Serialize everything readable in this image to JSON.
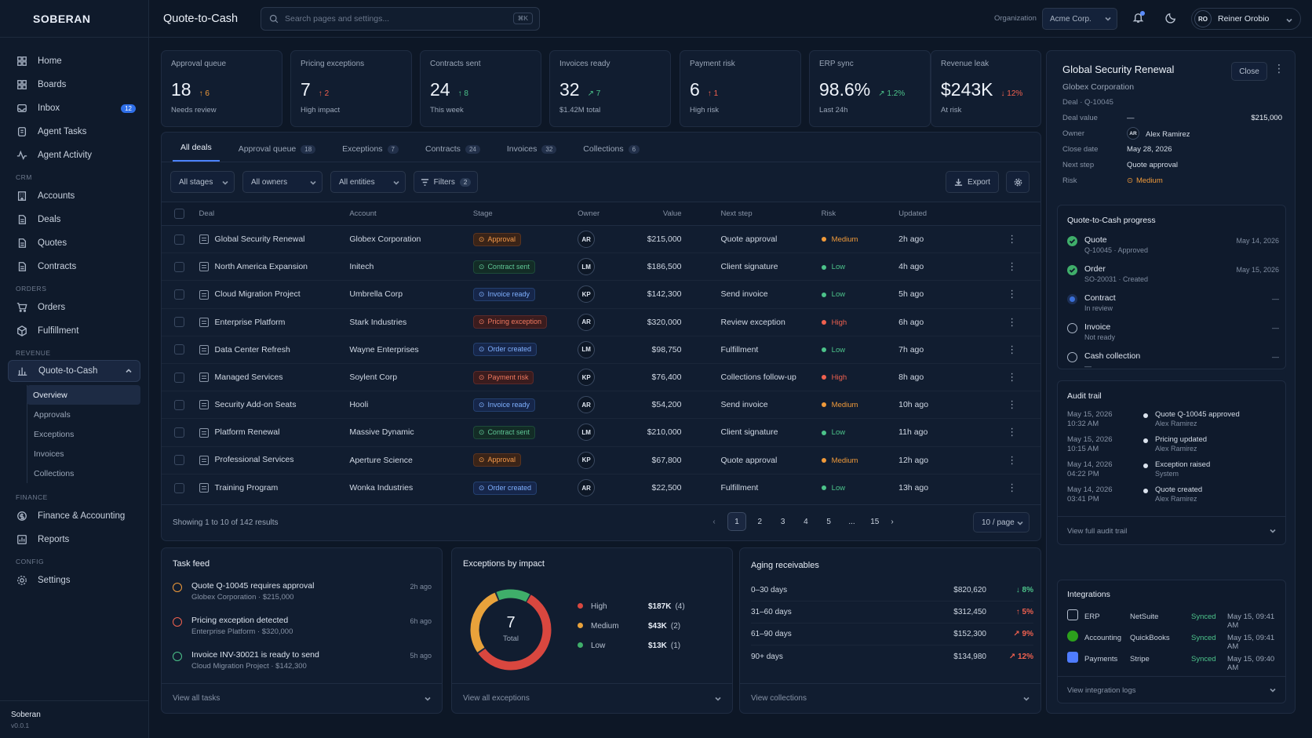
{
  "app": {
    "logo": "SOBERAN",
    "footer_name": "Soberan",
    "footer_version": "v0.0.1"
  },
  "sidebar": {
    "top": [
      {
        "label": "Home",
        "icon": "grid-icon"
      },
      {
        "label": "Boards",
        "icon": "grid-icon"
      },
      {
        "label": "Inbox",
        "icon": "inbox-icon",
        "badge": "12"
      },
      {
        "label": "Agent Tasks",
        "icon": "tasks-icon"
      },
      {
        "label": "Agent Activity",
        "icon": "activity-icon"
      }
    ],
    "crm_label": "CRM",
    "crm": [
      {
        "label": "Accounts"
      },
      {
        "label": "Deals"
      },
      {
        "label": "Quotes"
      },
      {
        "label": "Contracts"
      }
    ],
    "orders_label": "ORDERS",
    "orders": [
      {
        "label": "Orders"
      },
      {
        "label": "Fulfillment"
      }
    ],
    "revenue_label": "REVENUE",
    "revenue_active": "Quote-to-Cash",
    "revenue_sub": [
      "Overview",
      "Approvals",
      "Exceptions",
      "Invoices",
      "Collections"
    ],
    "finance_label": "FINANCE",
    "finance": [
      {
        "label": "Finance & Accounting"
      },
      {
        "label": "Reports"
      }
    ],
    "config_label": "CONFIG",
    "config": [
      {
        "label": "Settings"
      }
    ]
  },
  "topbar": {
    "title": "Quote-to-Cash",
    "search_placeholder": "Search pages and settings...",
    "search_shortcut": "⌘K",
    "org_label": "Organization",
    "org_value": "Acme Corp.",
    "user_initials": "RO",
    "user_name": "Reiner Orobio"
  },
  "kpis": [
    {
      "label": "Approval queue",
      "value": "18",
      "delta": "↑ 6",
      "delta_color": "#f09a3a",
      "sub": "Needs review"
    },
    {
      "label": "Pricing exceptions",
      "value": "7",
      "delta": "↑ 2",
      "delta_color": "#f0614f",
      "sub": "High impact"
    },
    {
      "label": "Contracts sent",
      "value": "24",
      "delta": "↑ 8",
      "delta_color": "#4cc38a",
      "sub": "This week"
    },
    {
      "label": "Invoices ready",
      "value": "32",
      "delta": "↗ 7",
      "delta_color": "#4cc38a",
      "sub": "$1.42M total"
    },
    {
      "label": "Payment risk",
      "value": "6",
      "delta": "↑ 1",
      "delta_color": "#f0614f",
      "sub": "High risk"
    },
    {
      "label": "ERP sync",
      "value": "98.6%",
      "delta": "↗ 1.2%",
      "delta_color": "#4cc38a",
      "sub": "Last 24h"
    },
    {
      "label": "Revenue leak",
      "value": "$243K",
      "delta": "↓ 12%",
      "delta_color": "#f0614f",
      "sub": "At risk"
    }
  ],
  "tabs": [
    {
      "label": "All deals",
      "count": ""
    },
    {
      "label": "Approval queue",
      "count": "18"
    },
    {
      "label": "Exceptions",
      "count": "7"
    },
    {
      "label": "Contracts",
      "count": "24"
    },
    {
      "label": "Invoices",
      "count": "32"
    },
    {
      "label": "Collections",
      "count": "6"
    }
  ],
  "filters": {
    "stages": "All stages",
    "owners": "All owners",
    "entities": "All entities",
    "filters": "Filters",
    "filters_count": "2",
    "export": "Export"
  },
  "columns": [
    "Deal",
    "Account",
    "Stage",
    "Owner",
    "Value",
    "Next step",
    "Risk",
    "Updated"
  ],
  "rows": [
    {
      "deal": "Global Security Renewal",
      "account": "Globex Corporation",
      "stage": "Approval",
      "stage_kind": "appr",
      "owner": "AR",
      "value": "$215,000",
      "next": "Quote approval",
      "risk": "Medium",
      "risk_color": "#f09a3a",
      "updated": "2h ago"
    },
    {
      "deal": "North America Expansion",
      "account": "Initech",
      "stage": "Contract sent",
      "stage_kind": "ok",
      "owner": "LM",
      "value": "$186,500",
      "next": "Client signature",
      "risk": "Low",
      "risk_color": "#4cc38a",
      "updated": "4h ago"
    },
    {
      "deal": "Cloud Migration Project",
      "account": "Umbrella Corp",
      "stage": "Invoice ready",
      "stage_kind": "blue",
      "owner": "KP",
      "value": "$142,300",
      "next": "Send invoice",
      "risk": "Low",
      "risk_color": "#4cc38a",
      "updated": "5h ago"
    },
    {
      "deal": "Enterprise Platform",
      "account": "Stark Industries",
      "stage": "Pricing exception",
      "stage_kind": "red",
      "owner": "AR",
      "value": "$320,000",
      "next": "Review exception",
      "risk": "High",
      "risk_color": "#f0614f",
      "updated": "6h ago"
    },
    {
      "deal": "Data Center Refresh",
      "account": "Wayne Enterprises",
      "stage": "Order created",
      "stage_kind": "blue",
      "owner": "LM",
      "value": "$98,750",
      "next": "Fulfillment",
      "risk": "Low",
      "risk_color": "#4cc38a",
      "updated": "7h ago"
    },
    {
      "deal": "Managed Services",
      "account": "Soylent Corp",
      "stage": "Payment risk",
      "stage_kind": "red",
      "owner": "KP",
      "value": "$76,400",
      "next": "Collections follow-up",
      "risk": "High",
      "risk_color": "#f0614f",
      "updated": "8h ago"
    },
    {
      "deal": "Security Add-on Seats",
      "account": "Hooli",
      "stage": "Invoice ready",
      "stage_kind": "blue",
      "owner": "AR",
      "value": "$54,200",
      "next": "Send invoice",
      "risk": "Medium",
      "risk_color": "#f09a3a",
      "updated": "10h ago"
    },
    {
      "deal": "Platform Renewal",
      "account": "Massive Dynamic",
      "stage": "Contract sent",
      "stage_kind": "ok",
      "owner": "LM",
      "value": "$210,000",
      "next": "Client signature",
      "risk": "Low",
      "risk_color": "#4cc38a",
      "updated": "11h ago"
    },
    {
      "deal": "Professional Services",
      "account": "Aperture Science",
      "stage": "Approval",
      "stage_kind": "appr",
      "owner": "KP",
      "value": "$67,800",
      "next": "Quote approval",
      "risk": "Medium",
      "risk_color": "#f09a3a",
      "updated": "12h ago"
    },
    {
      "deal": "Training Program",
      "account": "Wonka Industries",
      "stage": "Order created",
      "stage_kind": "blue",
      "owner": "AR",
      "value": "$22,500",
      "next": "Fulfillment",
      "risk": "Low",
      "risk_color": "#4cc38a",
      "updated": "13h ago"
    }
  ],
  "pagination": {
    "summary": "Showing 1 to 10 of 142 results",
    "pages": [
      "1",
      "2",
      "3",
      "4",
      "5",
      "...",
      "15"
    ],
    "per_page": "10 / page"
  },
  "task_feed": {
    "title": "Task feed",
    "items": [
      {
        "title": "Quote Q-10045 requires approval",
        "sub": "Globex Corporation  ·  $215,000",
        "time": "2h ago",
        "color": "#f09a3a"
      },
      {
        "title": "Pricing exception detected",
        "sub": "Enterprise Platform  ·  $320,000",
        "time": "6h ago",
        "color": "#f0614f"
      },
      {
        "title": "Invoice INV-30021 is ready to send",
        "sub": "Cloud Migration Project  ·  $142,300",
        "time": "5h ago",
        "color": "#4cc38a"
      }
    ],
    "footer": "View all tasks"
  },
  "exceptions": {
    "title": "Exceptions by impact",
    "total": "7",
    "total_label": "Total",
    "items": [
      {
        "label": "High",
        "amount": "$187K",
        "count": "(4)",
        "color": "#d9473f",
        "n": 4
      },
      {
        "label": "Medium",
        "amount": "$43K",
        "count": "(2)",
        "color": "#e9a23b",
        "n": 2
      },
      {
        "label": "Low",
        "amount": "$13K",
        "count": "(1)",
        "color": "#3fae6a",
        "n": 1
      }
    ],
    "footer": "View all exceptions"
  },
  "aging": {
    "title": "Aging receivables",
    "items": [
      {
        "bucket": "0–30 days",
        "amount": "$820,620",
        "pct": "↓ 8%",
        "color": "#4cc38a"
      },
      {
        "bucket": "31–60 days",
        "amount": "$312,450",
        "pct": "↑ 5%",
        "color": "#f0614f"
      },
      {
        "bucket": "61–90 days",
        "amount": "$152,300",
        "pct": "↗ 9%",
        "color": "#f0614f"
      },
      {
        "bucket": "90+ days",
        "amount": "$134,980",
        "pct": "↗ 12%",
        "color": "#f0614f"
      }
    ],
    "footer": "View collections"
  },
  "detail": {
    "title": "Global Security Renewal",
    "close": "Close",
    "company": "Globex Corporation",
    "type": "Deal",
    "id": "Q-10045",
    "fields": [
      {
        "k": "Deal value",
        "v": "—",
        "right": "$215,000"
      },
      {
        "k": "Owner",
        "v": "Alex Ramirez",
        "avatar": "AR"
      },
      {
        "k": "Close date",
        "v": "May 28, 2026"
      },
      {
        "k": "Next step",
        "v": "Quote approval"
      },
      {
        "k": "Risk",
        "v": "Medium",
        "risk": true
      }
    ],
    "progress_title": "Quote-to-Cash progress",
    "progress": [
      {
        "name": "Quote",
        "sub": "Q-10045  ·  Approved",
        "date": "May 14, 2026",
        "state": "done"
      },
      {
        "name": "Order",
        "sub": "SO-20031  ·  Created",
        "date": "May 15, 2026",
        "state": "done"
      },
      {
        "name": "Contract",
        "sub": "In review",
        "date": "—",
        "state": "current"
      },
      {
        "name": "Invoice",
        "sub": "Not ready",
        "date": "—",
        "state": "todo"
      },
      {
        "name": "Cash collection",
        "sub": "—",
        "date": "—",
        "state": "todo"
      }
    ],
    "audit_title": "Audit trail",
    "audit": [
      {
        "date": "May 15, 2026",
        "time": "10:32 AM",
        "event": "Quote Q-10045 approved",
        "user": "Alex Ramirez"
      },
      {
        "date": "May 15, 2026",
        "time": "10:15 AM",
        "event": "Pricing updated",
        "user": "Alex Ramirez"
      },
      {
        "date": "May 14, 2026",
        "time": "04:22 PM",
        "event": "Exception raised",
        "user": "System"
      },
      {
        "date": "May 14, 2026",
        "time": "03:41 PM",
        "event": "Quote created",
        "user": "Alex Ramirez"
      }
    ],
    "audit_footer": "View full audit trail",
    "integrations_title": "Integrations",
    "integrations": [
      {
        "type": "ERP",
        "system": "NetSuite",
        "status": "Synced",
        "time": "May 15, 09:41 AM",
        "icon": "erp-icon"
      },
      {
        "type": "Accounting",
        "system": "QuickBooks",
        "status": "Synced",
        "time": "May 15, 09:41 AM",
        "icon": "quickbooks-icon"
      },
      {
        "type": "Payments",
        "system": "Stripe",
        "status": "Synced",
        "time": "May 15, 09:40 AM",
        "icon": "stripe-icon"
      }
    ],
    "integrations_footer": "View integration logs"
  }
}
